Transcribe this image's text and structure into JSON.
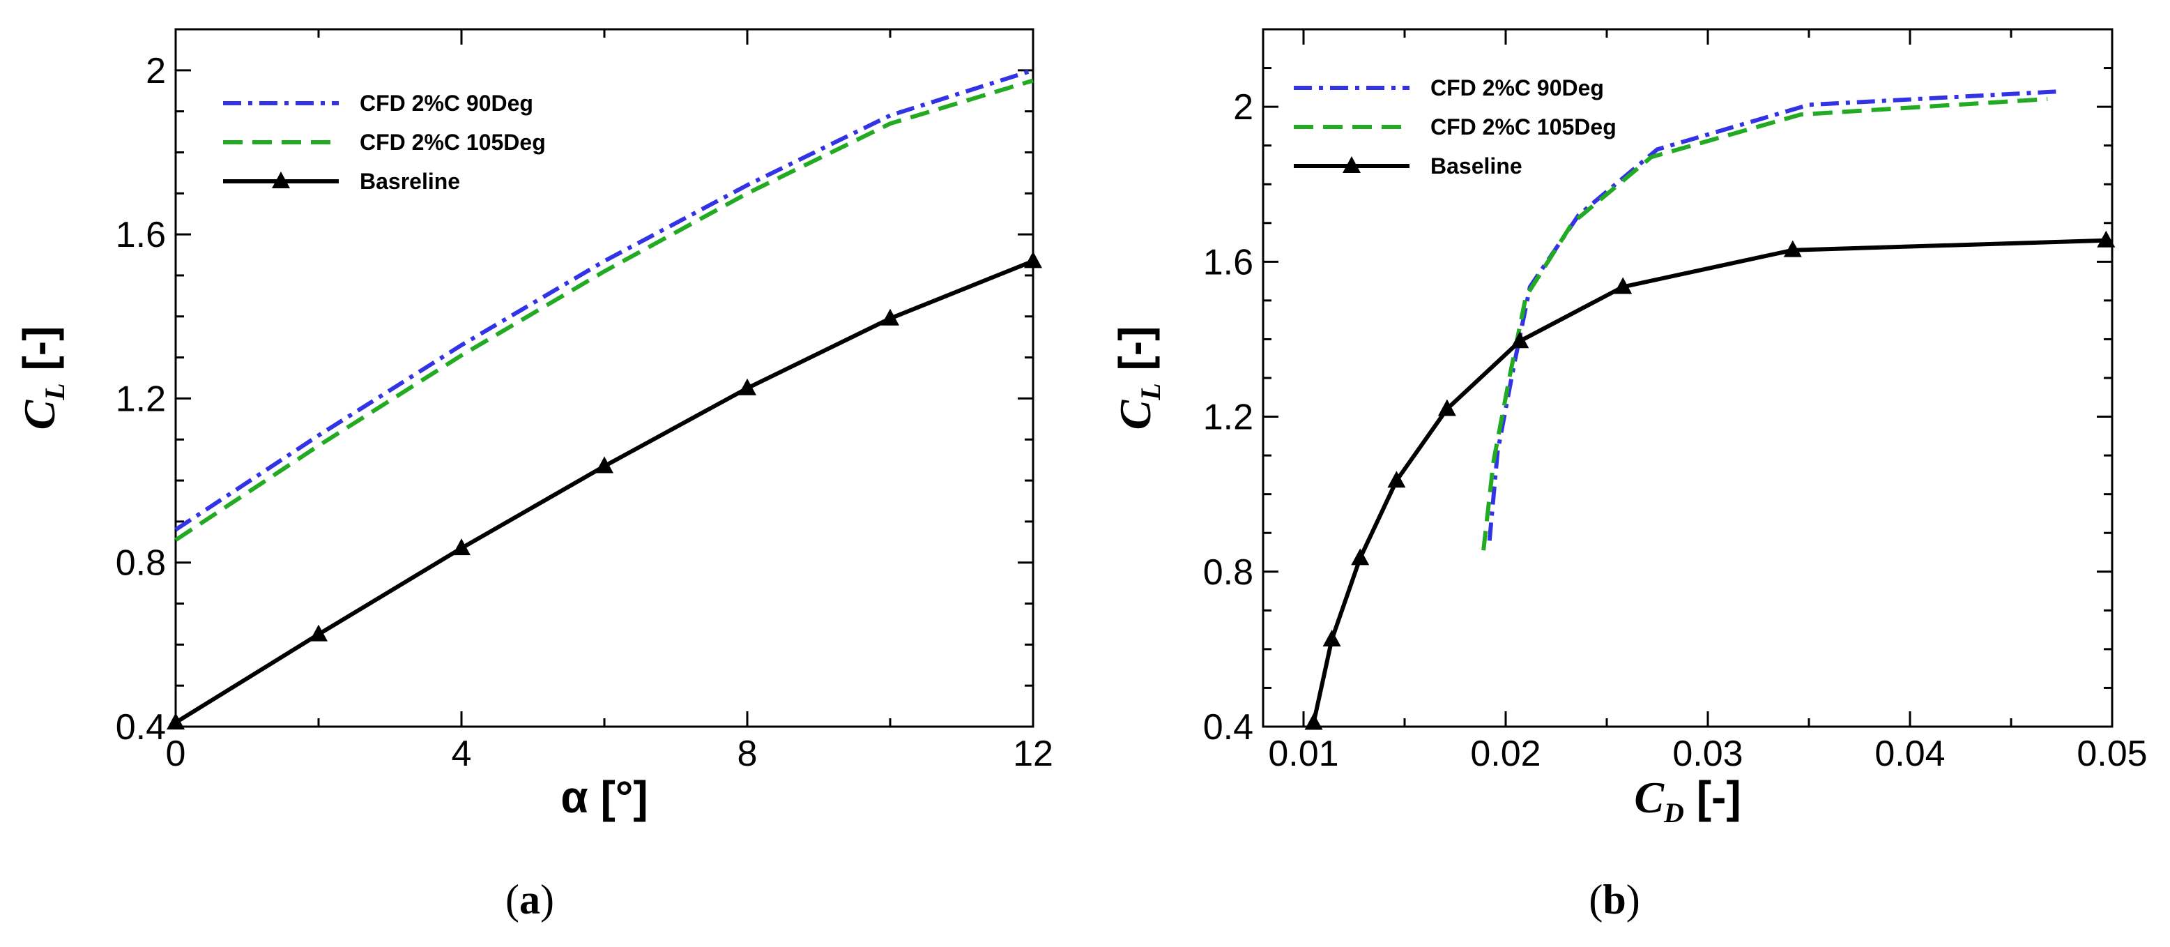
{
  "chart_data": [
    {
      "id": "a",
      "type": "line",
      "caption": "a",
      "xlabel": "α [°]",
      "ylabel_main": "C",
      "ylabel_sub": "L",
      "ylabel_tail": " [-]",
      "xlim": [
        0,
        12
      ],
      "ylim": [
        0.4,
        2.1
      ],
      "xticks": [
        0,
        4,
        8,
        12
      ],
      "xtick_labels": [
        "0",
        "4",
        "8",
        "12"
      ],
      "yticks": [
        0.4,
        0.8,
        1.2,
        1.6,
        2.0
      ],
      "ytick_labels": [
        "0.4",
        "0.8",
        "1.2",
        "1.6",
        "2"
      ],
      "legend_position": "top-left",
      "series": [
        {
          "name": "CFD 2%C 90Deg",
          "style": "dashdot",
          "color": "#3333e6",
          "marker": "none",
          "x": [
            0,
            2,
            4,
            6,
            8,
            10,
            12
          ],
          "y": [
            0.88,
            1.11,
            1.33,
            1.535,
            1.72,
            1.89,
            2.0
          ]
        },
        {
          "name": "CFD 2%C 105Deg",
          "style": "dashed",
          "color": "#22aa22",
          "marker": "none",
          "x": [
            0,
            2,
            4,
            6,
            8,
            10,
            12
          ],
          "y": [
            0.855,
            1.085,
            1.305,
            1.51,
            1.7,
            1.87,
            1.975
          ]
        },
        {
          "name": "Basreline",
          "style": "solid",
          "color": "#000000",
          "marker": "triangle",
          "x": [
            0,
            2,
            4,
            6,
            8,
            10,
            12
          ],
          "y": [
            0.41,
            0.625,
            0.835,
            1.035,
            1.225,
            1.395,
            1.535
          ]
        }
      ]
    },
    {
      "id": "b",
      "type": "line",
      "caption": "b",
      "xlabel_main": "C",
      "xlabel_sub": "D",
      "xlabel_tail": " [-]",
      "ylabel_main": "C",
      "ylabel_sub": "L",
      "ylabel_tail": " [-]",
      "xlim": [
        0.008,
        0.05
      ],
      "ylim": [
        0.4,
        2.2
      ],
      "xticks": [
        0.01,
        0.02,
        0.03,
        0.04,
        0.05
      ],
      "xtick_labels": [
        "0.01",
        "0.02",
        "0.03",
        "0.04",
        "0.05"
      ],
      "yticks": [
        0.4,
        0.8,
        1.2,
        1.6,
        2.0
      ],
      "ytick_labels": [
        "0.4",
        "0.8",
        "1.2",
        "1.6",
        "2"
      ],
      "legend_position": "top-left",
      "series": [
        {
          "name": "CFD 2%C 90Deg",
          "style": "dashdot",
          "color": "#3333e6",
          "marker": "none",
          "x": [
            0.0192,
            0.0196,
            0.0204,
            0.0212,
            0.0236,
            0.0275,
            0.035,
            0.0475
          ],
          "y": [
            0.88,
            1.11,
            1.33,
            1.535,
            1.72,
            1.89,
            2.005,
            2.04
          ]
        },
        {
          "name": "CFD 2%C 105Deg",
          "style": "dashed",
          "color": "#22aa22",
          "marker": "none",
          "x": [
            0.0189,
            0.0194,
            0.0202,
            0.021,
            0.0233,
            0.0272,
            0.0346,
            0.0468
          ],
          "y": [
            0.855,
            1.085,
            1.305,
            1.51,
            1.7,
            1.87,
            1.98,
            2.02
          ]
        },
        {
          "name": "Baseline",
          "style": "solid",
          "color": "#000000",
          "marker": "triangle",
          "x": [
            0.0105,
            0.0114,
            0.0128,
            0.0146,
            0.0171,
            0.0207,
            0.0258,
            0.0342,
            0.0497
          ],
          "y": [
            0.41,
            0.625,
            0.835,
            1.035,
            1.22,
            1.395,
            1.535,
            1.63,
            1.655
          ]
        }
      ]
    }
  ]
}
